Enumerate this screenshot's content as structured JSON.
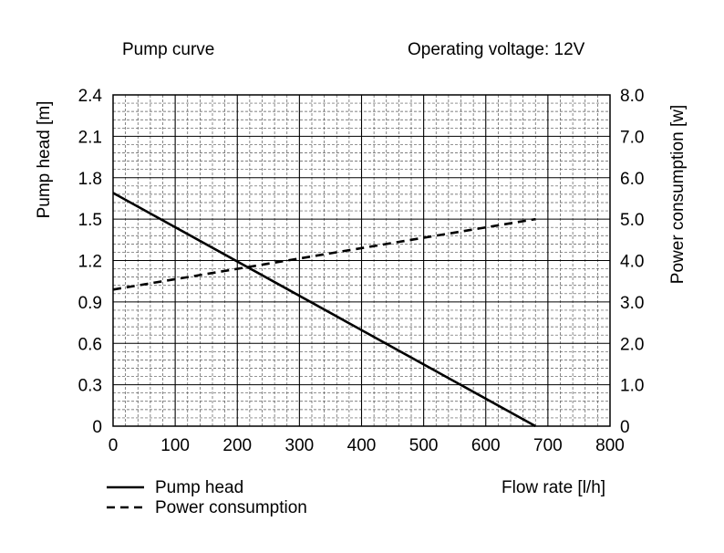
{
  "chart_data": {
    "type": "line",
    "title": "Pump curve",
    "subtitle": "Operating voltage: 12V",
    "xlabel": "Flow rate [l/h]",
    "ylabel": "Pump head [m]",
    "y2label": "Power consumption [w]",
    "xlim": [
      0,
      800
    ],
    "ylim": [
      0,
      2.4
    ],
    "y2lim": [
      0,
      8.0
    ],
    "grid": true,
    "legend_position": "bottom-left",
    "x_ticks": [
      "0",
      "100",
      "200",
      "300",
      "400",
      "500",
      "600",
      "700",
      "800"
    ],
    "y_ticks": [
      "0",
      "0.3",
      "0.6",
      "0.9",
      "1.2",
      "1.5",
      "1.8",
      "2.1",
      "2.4"
    ],
    "y2_ticks": [
      "0",
      "1.0",
      "2.0",
      "3.0",
      "4.0",
      "5.0",
      "6.0",
      "7.0",
      "8.0"
    ],
    "series": [
      {
        "name": "Pump head",
        "axis": "left",
        "style": "solid",
        "x": [
          0,
          680
        ],
        "values": [
          1.69,
          0
        ]
      },
      {
        "name": "Power consumption",
        "axis": "right",
        "style": "dashed",
        "x": [
          0,
          680
        ],
        "values": [
          3.3,
          5.0
        ]
      }
    ]
  }
}
